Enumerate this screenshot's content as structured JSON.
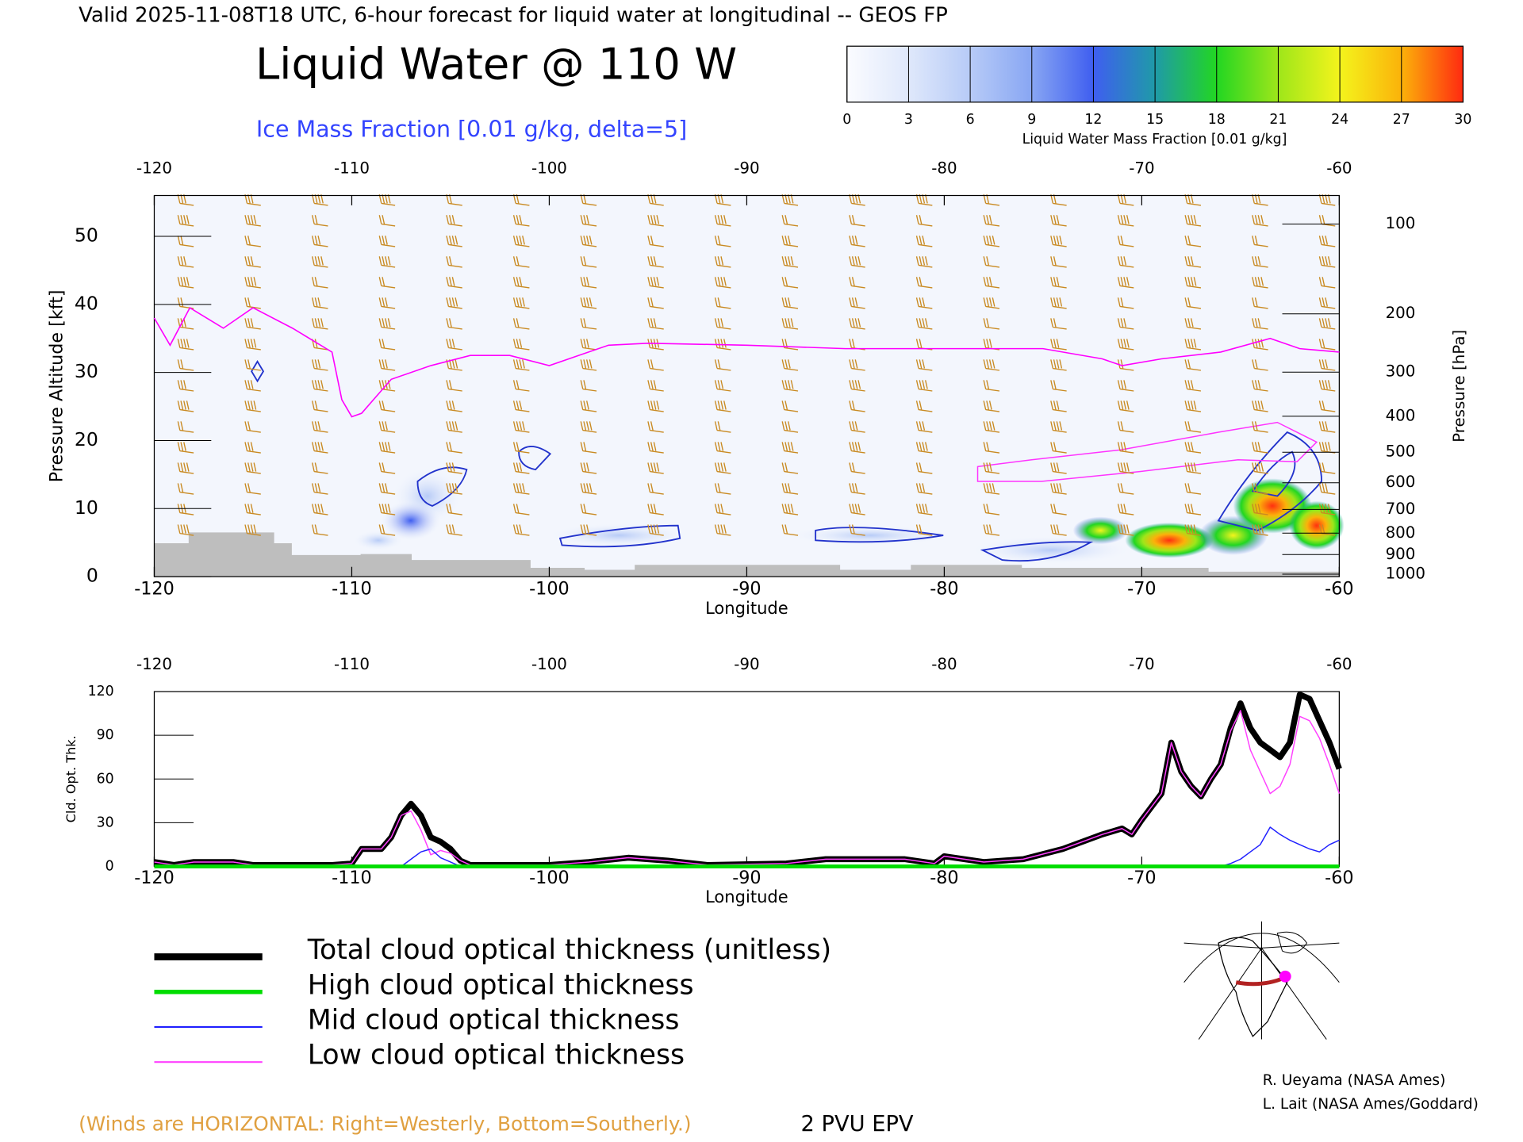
{
  "header": "Valid 2025-11-08T18 UTC, 6-hour forecast for liquid water at longitudinal -- GEOS FP",
  "chart_data": [
    {
      "type": "colorbar",
      "label": "Liquid Water Mass Fraction [0.01 g/kg]",
      "xlim": [
        0,
        30
      ],
      "xticks": [
        0,
        3,
        6,
        9,
        12,
        15,
        18,
        21,
        24,
        27,
        30
      ],
      "colors": [
        "#fbfcff",
        "#dfe8fb",
        "#b7cbf7",
        "#88a6f3",
        "#3f5ef0",
        "#1f9aa8",
        "#22d622",
        "#9ee61a",
        "#f4f41c",
        "#fbb20a",
        "#ff2a10"
      ]
    },
    {
      "type": "cross-section",
      "title": "Liquid Water @ 110 W",
      "subtitle": "Ice Mass Fraction [0.01 g/kg, delta=5]",
      "xlabel": "Longitude",
      "ylabel": "Pressure Altitude [kft]",
      "y2label": "Pressure [hPa]",
      "xlim": [
        -120,
        -60
      ],
      "ylim": [
        0,
        56
      ],
      "xticks": [
        -120,
        -110,
        -100,
        -90,
        -80,
        -70,
        -60
      ],
      "yticks": [
        0,
        10,
        20,
        30,
        40,
        50
      ],
      "y2scale": "pressure",
      "y2ticks": [
        100,
        200,
        300,
        400,
        500,
        600,
        700,
        800,
        900,
        1000
      ],
      "note": "(Winds are HORIZONTAL: Right=Westerly, Bottom=Southerly.)",
      "series": [
        {
          "name": "2 PVU EPV",
          "color": "#ff00ff",
          "x": [
            -120,
            -119.2,
            -118.2,
            -116.5,
            -115,
            -113,
            -111,
            -110.5,
            -110,
            -109.5,
            -108,
            -106,
            -104,
            -102,
            -100,
            -98.5,
            -97,
            -95,
            -90,
            -85,
            -80,
            -75,
            -72,
            -71,
            -69,
            -66,
            -63.5,
            -62,
            -60
          ],
          "values": [
            38,
            34,
            39.5,
            36.5,
            39.5,
            36.5,
            33,
            26,
            23.5,
            24,
            29,
            31,
            32.5,
            32.5,
            31,
            32.5,
            34,
            34.3,
            34,
            33.5,
            33.5,
            33.5,
            32,
            31,
            32,
            33,
            35,
            33.5,
            33
          ]
        }
      ]
    },
    {
      "type": "line",
      "xlabel": "Longitude",
      "ylabel": "Cld. Opt. Thk.",
      "xlim": [
        -120,
        -60
      ],
      "ylim": [
        0,
        120
      ],
      "xticks": [
        -120,
        -110,
        -100,
        -90,
        -80,
        -70,
        -60
      ],
      "yticks": [
        0,
        30,
        60,
        90,
        120
      ],
      "x": [
        -120,
        -119,
        -118,
        -116,
        -115,
        -113,
        -111,
        -110,
        -109.5,
        -108.5,
        -108,
        -107.5,
        -107,
        -106.5,
        -106,
        -105.5,
        -105,
        -104.5,
        -104,
        -100,
        -98,
        -96,
        -94,
        -92,
        -88,
        -86,
        -82,
        -80.5,
        -80,
        -78,
        -76,
        -74,
        -72,
        -71,
        -70.5,
        -70,
        -69,
        -68.5,
        -68,
        -67.5,
        -67,
        -66.5,
        -66,
        -65.5,
        -65,
        -64.5,
        -64,
        -63.5,
        -63,
        -62.5,
        -62,
        -61.5,
        -61,
        -60.5,
        -60
      ],
      "series": [
        {
          "name": "Total cloud optical thickness (unitless)",
          "color": "#000000",
          "values": [
            3,
            1,
            3,
            3,
            1,
            1,
            1,
            2,
            12,
            12,
            20,
            35,
            43,
            35,
            20,
            17,
            12,
            4,
            1,
            1,
            3,
            6,
            4,
            1,
            2,
            5,
            5,
            2,
            7,
            3,
            5,
            12,
            22,
            26,
            22,
            32,
            50,
            85,
            65,
            55,
            48,
            60,
            70,
            95,
            112,
            95,
            85,
            80,
            75,
            85,
            118,
            115,
            100,
            85,
            67
          ]
        },
        {
          "name": "High cloud optical thickness",
          "color": "#00dd00",
          "values": [
            0,
            0,
            0,
            0,
            0,
            0,
            0,
            0,
            0,
            0,
            0,
            0,
            0,
            0,
            0,
            0,
            0,
            0,
            0,
            0,
            0,
            0,
            0,
            0,
            0,
            0,
            0,
            0,
            0,
            0,
            0,
            0,
            0,
            0,
            0,
            0,
            0,
            0,
            0,
            0,
            0,
            0,
            0,
            0,
            0,
            0,
            0,
            0,
            0,
            0,
            0,
            0,
            0,
            0,
            0
          ]
        },
        {
          "name": "Mid cloud optical thickness",
          "color": "#2020ff",
          "values": [
            0,
            0,
            0,
            0,
            0,
            0,
            0,
            0,
            0,
            0,
            0,
            0,
            5,
            10,
            12,
            6,
            3,
            0,
            0,
            0,
            0,
            0,
            0,
            0,
            0,
            0,
            0,
            0,
            0,
            0,
            0,
            0,
            0,
            0,
            0,
            0,
            0,
            0,
            0,
            0,
            0,
            0,
            0,
            2,
            5,
            10,
            15,
            27,
            22,
            18,
            15,
            12,
            10,
            15,
            18
          ]
        },
        {
          "name": "Low cloud optical thickness",
          "color": "#ff40ff",
          "values": [
            3,
            1,
            3,
            3,
            1,
            1,
            1,
            2,
            12,
            12,
            20,
            35,
            38,
            25,
            8,
            11,
            9,
            4,
            1,
            1,
            3,
            6,
            4,
            1,
            2,
            5,
            5,
            2,
            7,
            3,
            5,
            12,
            22,
            26,
            22,
            32,
            50,
            85,
            65,
            55,
            48,
            60,
            70,
            93,
            107,
            80,
            65,
            50,
            55,
            70,
            103,
            100,
            88,
            70,
            50
          ]
        }
      ]
    }
  ],
  "credits": [
    "R. Ueyama (NASA Ames)",
    "L. Lait (NASA Ames/Goddard)"
  ]
}
